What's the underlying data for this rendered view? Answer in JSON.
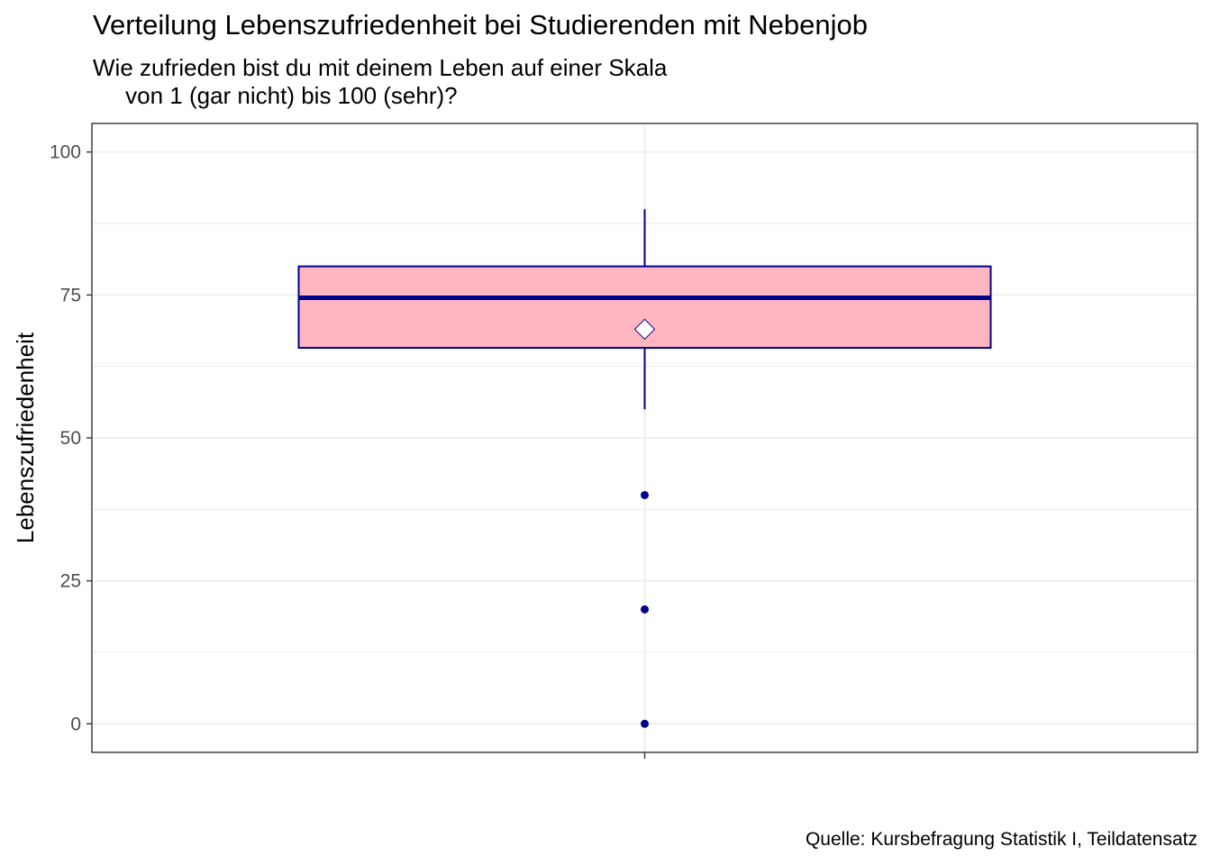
{
  "title": "Verteilung Lebenszufriedenheit bei Studierenden mit Nebenjob",
  "subtitle": "Wie zufrieden bist du mit deinem Leben auf einer Skala\n     von 1 (gar nicht) bis 100 (sehr)?",
  "caption": "Quelle: Kursbefragung Statistik I, Teildatensatz",
  "chart_data": {
    "type": "boxplot",
    "ylabel": "Lebenszufriedenheit",
    "xlabel": "",
    "ylim": [
      -5,
      105
    ],
    "yticks": [
      0,
      25,
      50,
      75,
      100
    ],
    "grid": true,
    "box": {
      "q1": 65.75,
      "median": 74.5,
      "q3": 80,
      "whisker_low": 55,
      "whisker_high": 90,
      "mean": 69,
      "outliers": [
        40,
        20,
        0
      ]
    },
    "colors": {
      "box_fill": "#ffb6c1",
      "box_line": "#00008b",
      "mean_marker": "#ffffff",
      "outlier": "#00008b",
      "grid": "#ebebeb",
      "panel_border": "#333333"
    }
  }
}
